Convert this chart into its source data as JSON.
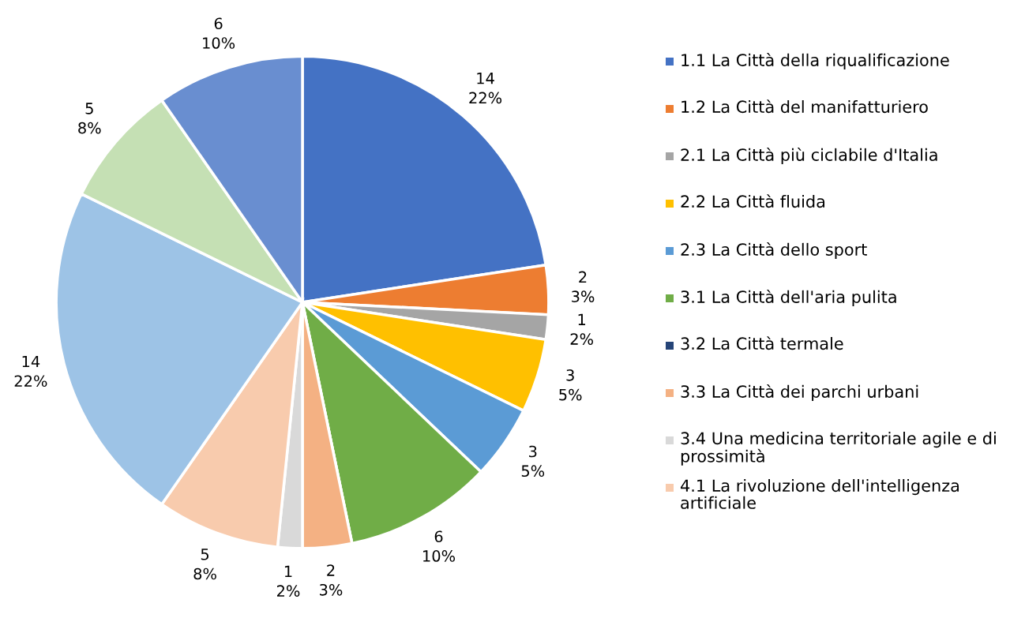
{
  "chart_data": {
    "type": "pie",
    "categories": [
      "1.1 La Città della riqualificazione",
      "1.2 La Città del manifatturiero",
      "2.1 La Città più ciclabile d'Italia",
      "2.2 La Città fluida",
      "2.3 La Città dello sport",
      "3.1 La Città dell'aria pulita",
      "3.2 La Città termale",
      "3.3 La Città dei parchi urbani",
      "3.4 Una medicina territoriale agile e di prossimità",
      "4.1 La rivoluzione dell'intelligenza artificiale",
      null,
      null,
      null
    ],
    "values": [
      14,
      2,
      1,
      3,
      3,
      6,
      0,
      2,
      1,
      5,
      14,
      5,
      6
    ],
    "value_labels": [
      "14\n22%",
      "2\n3%",
      "1\n2%",
      "3\n5%",
      "3\n5%",
      "6\n10%",
      null,
      "2\n3%",
      "1\n2%",
      "5\n8%",
      "14\n22%",
      "5\n8%",
      "6\n10%"
    ],
    "colors": [
      "#4472c4",
      "#ed7d31",
      "#a5a5a5",
      "#ffc000",
      "#5b9bd5",
      "#70ad47",
      "#264478",
      "#f4b183",
      "#d9d9d9",
      "#f8cbad",
      "#9dc3e6",
      "#c5e0b4",
      "#698ed0"
    ],
    "legend": "right"
  }
}
